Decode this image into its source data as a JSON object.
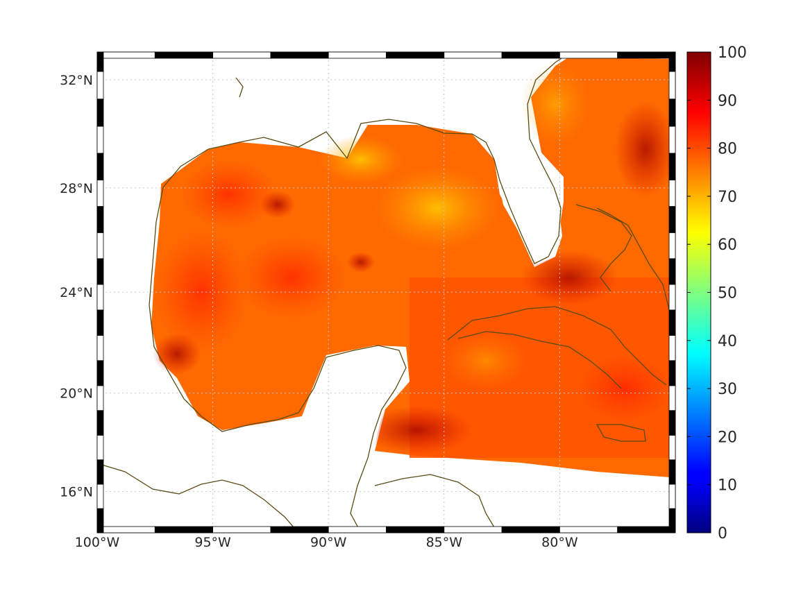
{
  "map": {
    "projection": "mercator",
    "lon_range": [
      -100,
      -75
    ],
    "lat_range": [
      14.3,
      33
    ],
    "lon_ticks": [
      {
        "value": -100,
        "label": "100°W"
      },
      {
        "value": -95,
        "label": "95°W"
      },
      {
        "value": -90,
        "label": "90°W"
      },
      {
        "value": -85,
        "label": "85°W"
      },
      {
        "value": -80,
        "label": "80°W"
      }
    ],
    "lat_ticks": [
      {
        "value": 16,
        "label": "16°N"
      },
      {
        "value": 20,
        "label": "20°N"
      },
      {
        "value": 24,
        "label": "24°N"
      },
      {
        "value": 28,
        "label": "28°N"
      },
      {
        "value": 32,
        "label": "32°N"
      }
    ],
    "grid": true,
    "coastline_color": "#5a4a14",
    "field_colormap": "jet",
    "field_typical_range": [
      70,
      95
    ]
  },
  "colorbar": {
    "min": 0,
    "max": 100,
    "tick_labels": [
      "0",
      "10",
      "20",
      "30",
      "40",
      "50",
      "60",
      "70",
      "80",
      "90",
      "100"
    ]
  }
}
